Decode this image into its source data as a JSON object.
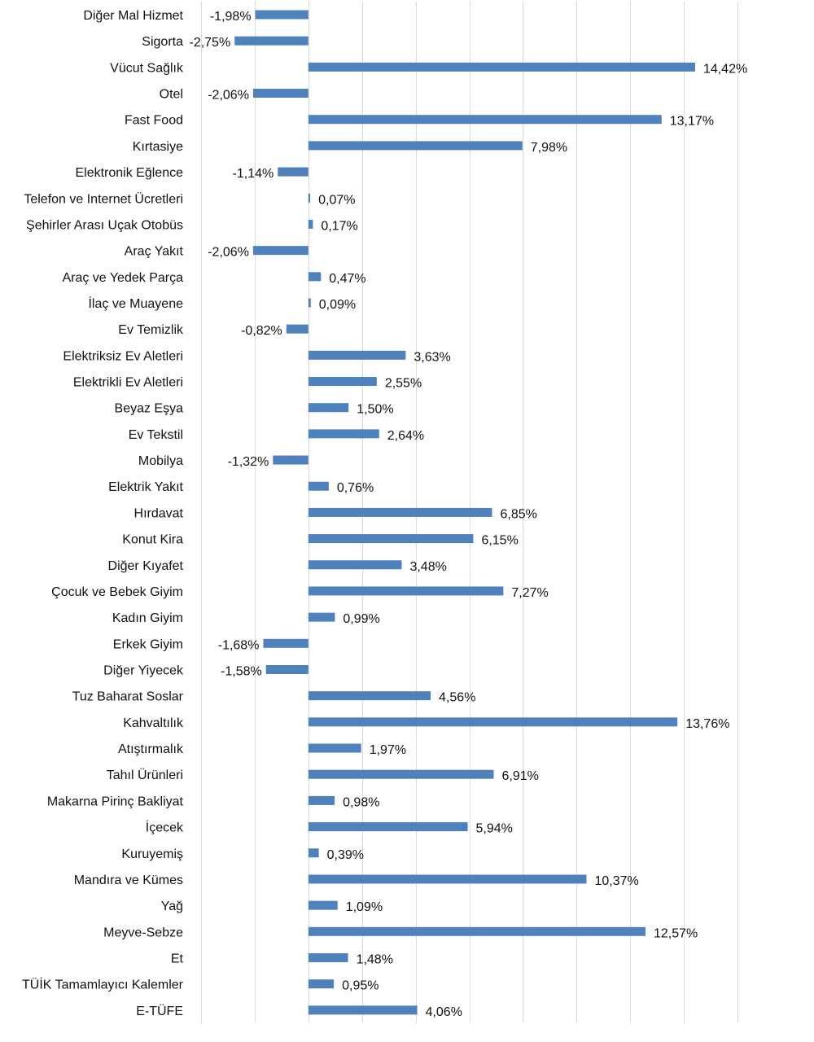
{
  "chart_data": {
    "type": "bar",
    "orientation": "horizontal",
    "title": "",
    "xlabel": "",
    "ylabel": "",
    "xlim": [
      -4,
      16
    ],
    "grid_step": 2,
    "grid": true,
    "bar_color": "#4f81bd",
    "categories": [
      "Diğer Mal Hizmet",
      "Sigorta",
      "Vücut Sağlık",
      "Otel",
      "Fast Food",
      "Kırtasiye",
      "Elektronik Eğlence",
      "Telefon ve Internet Ücretleri",
      "Şehirler Arası Uçak Otobüs",
      "Araç Yakıt",
      "Araç ve Yedek Parça",
      "İlaç ve Muayene",
      "Ev Temizlik",
      "Elektriksiz Ev Aletleri",
      "Elektrikli Ev Aletleri",
      "Beyaz Eşya",
      "Ev Tekstil",
      "Mobilya",
      "Elektrik Yakıt",
      "Hırdavat",
      "Konut Kira",
      "Diğer Kıyafet",
      "Çocuk ve Bebek Giyim",
      "Kadın Giyim",
      "Erkek Giyim",
      "Diğer Yiyecek",
      "Tuz Baharat Soslar",
      "Kahvaltılık",
      "Atıştırmalık",
      "Tahıl Ürünleri",
      "Makarna Pirinç Bakliyat",
      "İçecek",
      "Kuruyemiş",
      "Mandıra ve Kümes",
      "Yağ",
      "Meyve-Sebze",
      "Et",
      "TÜİK Tamamlayıcı Kalemler",
      "E-TÜFE"
    ],
    "values": [
      -1.98,
      -2.75,
      14.42,
      -2.06,
      13.17,
      7.98,
      -1.14,
      0.07,
      0.17,
      -2.06,
      0.47,
      0.09,
      -0.82,
      3.63,
      2.55,
      1.5,
      2.64,
      -1.32,
      0.76,
      6.85,
      6.15,
      3.48,
      7.27,
      0.99,
      -1.68,
      -1.58,
      4.56,
      13.76,
      1.97,
      6.91,
      0.98,
      5.94,
      0.39,
      10.37,
      1.09,
      12.57,
      1.48,
      0.95,
      4.06
    ],
    "data_labels": [
      "-1,98%",
      "-2,75%",
      "14,42%",
      "-2,06%",
      "13,17%",
      "7,98%",
      "-1,14%",
      "0,07%",
      "0,17%",
      "-2,06%",
      "0,47%",
      "0,09%",
      "-0,82%",
      "3,63%",
      "2,55%",
      "1,50%",
      "2,64%",
      "-1,32%",
      "0,76%",
      "6,85%",
      "6,15%",
      "3,48%",
      "7,27%",
      "0,99%",
      "-1,68%",
      "-1,58%",
      "4,56%",
      "13,76%",
      "1,97%",
      "6,91%",
      "0,98%",
      "5,94%",
      "0,39%",
      "10,37%",
      "1,09%",
      "12,57%",
      "1,48%",
      "0,95%",
      "4,06%"
    ]
  }
}
